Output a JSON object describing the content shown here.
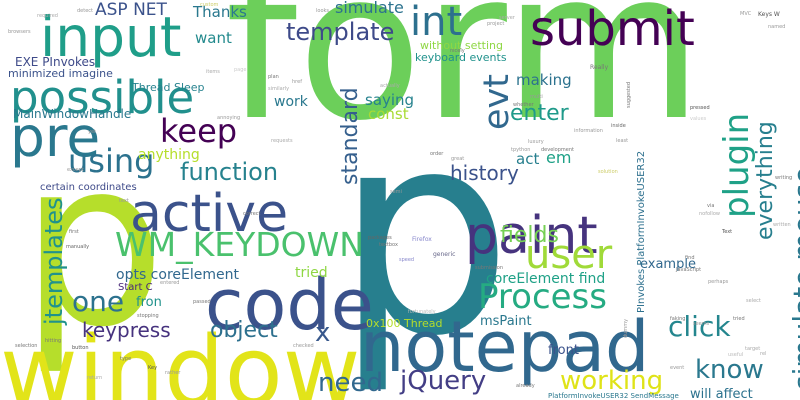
{
  "words": [
    {
      "text": "form",
      "color": "#6ccf5a"
    },
    {
      "text": "p",
      "color": "#b6de2b"
    },
    {
      "text": "p",
      "color": "#277f8e"
    },
    {
      "text": "window",
      "color": "#e2e419"
    },
    {
      "text": "notepad",
      "color": "#31688e"
    },
    {
      "text": "code",
      "color": "#3b528b"
    },
    {
      "text": "input",
      "color": "#1f9e89"
    },
    {
      "text": "pre",
      "color": "#2a788e"
    },
    {
      "text": "possible",
      "color": "#21908d"
    },
    {
      "text": "submit",
      "color": "#440154"
    },
    {
      "text": "active",
      "color": "#3b528b"
    },
    {
      "text": "paint",
      "color": "#46337e"
    },
    {
      "text": "user",
      "color": "#a0da39"
    },
    {
      "text": "Process",
      "color": "#25ab82"
    },
    {
      "text": "WM_KEYDOWN",
      "color": "#4ac16d"
    },
    {
      "text": "int",
      "color": "#2d708e"
    },
    {
      "text": "plugin",
      "color": "#1fa187"
    },
    {
      "text": "simulate mouse",
      "color": "#2a788e"
    },
    {
      "text": "everything",
      "color": "#277f8e"
    },
    {
      "text": "jtemplates",
      "color": "#20928c"
    },
    {
      "text": "keep",
      "color": "#440154"
    },
    {
      "text": "using",
      "color": "#2c728e"
    },
    {
      "text": "function",
      "color": "#26828e"
    },
    {
      "text": "one",
      "color": "#2c728e"
    },
    {
      "text": "template",
      "color": "#3e4a89"
    },
    {
      "text": "standard",
      "color": "#355f8d"
    },
    {
      "text": "evt",
      "color": "#31688e"
    },
    {
      "text": "enter",
      "color": "#1f9a8a"
    },
    {
      "text": "history",
      "color": "#3b528b"
    },
    {
      "text": "fields",
      "color": "#75d054"
    },
    {
      "text": "click",
      "color": "#24868e"
    },
    {
      "text": "know",
      "color": "#2a788e"
    },
    {
      "text": "jQuery",
      "color": "#433e85"
    },
    {
      "text": "working",
      "color": "#dfe318"
    },
    {
      "text": "need",
      "color": "#31688e"
    },
    {
      "text": "x",
      "color": "#38588c"
    },
    {
      "text": "object",
      "color": "#2d708e"
    },
    {
      "text": "keypress",
      "color": "#46327e"
    },
    {
      "text": "ASP NET",
      "color": "#3b528b"
    },
    {
      "text": "Thanks",
      "color": "#2a788e"
    },
    {
      "text": "simulate",
      "color": "#2c728e"
    },
    {
      "text": "without setting",
      "color": "#8fd744"
    },
    {
      "text": "want",
      "color": "#238a8d"
    },
    {
      "text": "keyboard events",
      "color": "#20928c"
    },
    {
      "text": "em",
      "color": "#1fa187"
    },
    {
      "text": "act",
      "color": "#277f8e"
    },
    {
      "text": "saying",
      "color": "#26828e"
    },
    {
      "text": "const",
      "color": "#a8db34"
    },
    {
      "text": "making",
      "color": "#2c728e"
    },
    {
      "text": "anything",
      "color": "#b5de2b"
    },
    {
      "text": "work",
      "color": "#2a788e"
    },
    {
      "text": "fron",
      "color": "#20928c"
    },
    {
      "text": "tried",
      "color": "#8fd744"
    },
    {
      "text": "opts coreElement",
      "color": "#31688e"
    },
    {
      "text": "coreElement find",
      "color": "#1fa187"
    },
    {
      "text": "example",
      "color": "#31688e"
    },
    {
      "text": "msPaint",
      "color": "#2a788e"
    },
    {
      "text": "front",
      "color": "#3b528b"
    },
    {
      "text": "will affect",
      "color": "#2c728e"
    },
    {
      "text": "MainWindowHandle",
      "color": "#2a788e"
    },
    {
      "text": "EXE PInvokes",
      "color": "#3e4a89"
    },
    {
      "text": "minimized imagine",
      "color": "#3b528b"
    },
    {
      "text": "Thread Sleep",
      "color": "#26828e"
    },
    {
      "text": "certain coordinates",
      "color": "#3e4a89"
    },
    {
      "text": "Start C",
      "color": "#482878"
    },
    {
      "text": "0x100 Thread",
      "color": "#b5de2b"
    },
    {
      "text": "PInvokes PlatformInvokeUSER32",
      "color": "#2d708e"
    },
    {
      "text": "PlatformInvokeUSER32 SendMessage",
      "color": "#2a788e"
    },
    {
      "text": "Really",
      "color": "#777777"
    },
    {
      "text": "Keys W",
      "color": "#555555"
    },
    {
      "text": "perhaps",
      "color": "#999999"
    },
    {
      "text": "JavaScript",
      "color": "#777777"
    },
    {
      "text": "Firefox",
      "color": "#8888cc"
    },
    {
      "text": "generic",
      "color": "#666688"
    },
    {
      "text": "passed",
      "color": "#777777"
    },
    {
      "text": "written",
      "color": "#aaaaaa"
    },
    {
      "text": "fortunately",
      "color": "#bbbbbb"
    },
    {
      "text": "luxury",
      "color": "#999999"
    },
    {
      "text": "development",
      "color": "#777777"
    },
    {
      "text": "information",
      "color": "#999999"
    },
    {
      "text": "inside",
      "color": "#666666"
    },
    {
      "text": "pressed",
      "color": "#555555"
    },
    {
      "text": "values",
      "color": "#cccccc"
    },
    {
      "text": "selection",
      "color": "#777777"
    },
    {
      "text": "hitting",
      "color": "#777777"
    },
    {
      "text": "button",
      "color": "#555555"
    },
    {
      "text": "checked",
      "color": "#999999"
    },
    {
      "text": "return",
      "color": "#aaaaaa"
    },
    {
      "text": "rather",
      "color": "#999999"
    },
    {
      "text": "already",
      "color": "#777777"
    },
    {
      "text": "event",
      "color": "#999999"
    },
    {
      "text": "target",
      "color": "#aaaaaa"
    },
    {
      "text": "submission",
      "color": "#777777"
    },
    {
      "text": "speed",
      "color": "#8888cc"
    },
    {
      "text": "packages",
      "color": "#666666"
    },
    {
      "text": "textbox",
      "color": "#777777"
    },
    {
      "text": "manually",
      "color": "#666666"
    },
    {
      "text": "first",
      "color": "#777777"
    },
    {
      "text": "except",
      "color": "#999999"
    },
    {
      "text": "correct",
      "color": "#777777"
    },
    {
      "text": "browsers",
      "color": "#999999"
    },
    {
      "text": "required",
      "color": "#aaaaaa"
    },
    {
      "text": "detect",
      "color": "#999999"
    },
    {
      "text": "custom",
      "color": "#cccc66"
    },
    {
      "text": "looks",
      "color": "#999999"
    },
    {
      "text": "server",
      "color": "#aaaaaa"
    },
    {
      "text": "project",
      "color": "#999999"
    },
    {
      "text": "nicely",
      "color": "#777777"
    },
    {
      "text": "multi",
      "color": "#999999"
    },
    {
      "text": "whether",
      "color": "#777777"
    },
    {
      "text": "tpython",
      "color": "#999999"
    },
    {
      "text": "order",
      "color": "#777777"
    },
    {
      "text": "great",
      "color": "#999999"
    },
    {
      "text": "suggested",
      "color": "#777777"
    },
    {
      "text": "least",
      "color": "#999999"
    },
    {
      "text": "annoying",
      "color": "#999999"
    },
    {
      "text": "similarly",
      "color": "#aaaaaa"
    },
    {
      "text": "plan",
      "color": "#777777"
    },
    {
      "text": "href",
      "color": "#999999"
    },
    {
      "text": "items",
      "color": "#aaaaaa"
    },
    {
      "text": "page",
      "color": "#cccccc"
    },
    {
      "text": "text",
      "color": "#999999"
    },
    {
      "text": "via",
      "color": "#777777"
    },
    {
      "text": "nofollow",
      "color": "#aaaaaa"
    },
    {
      "text": "find",
      "color": "#777777"
    },
    {
      "text": "semi",
      "color": "#999999"
    },
    {
      "text": "writing",
      "color": "#777777"
    },
    {
      "text": "named",
      "color": "#999999"
    },
    {
      "text": "type",
      "color": "#777777"
    },
    {
      "text": "Key",
      "color": "#555555"
    },
    {
      "text": "stopping",
      "color": "#777777"
    },
    {
      "text": "yet",
      "color": "#999999"
    },
    {
      "text": "requests",
      "color": "#aaaaaa"
    },
    {
      "text": "entered",
      "color": "#999999"
    },
    {
      "text": "faking",
      "color": "#777777"
    },
    {
      "text": "seems",
      "color": "#999999"
    },
    {
      "text": "rel",
      "color": "#aaaaaa"
    },
    {
      "text": "MVC",
      "color": "#999999"
    },
    {
      "text": "solution",
      "color": "#cccc66"
    },
    {
      "text": "Text",
      "color": "#555555"
    },
    {
      "text": "dummy",
      "color": "#999999"
    },
    {
      "text": "tried",
      "color": "#777777"
    },
    {
      "text": "select",
      "color": "#aaaaaa"
    },
    {
      "text": "useful",
      "color": "#bbbbbb"
    },
    {
      "text": "actually",
      "color": "#aaaaaa"
    }
  ]
}
